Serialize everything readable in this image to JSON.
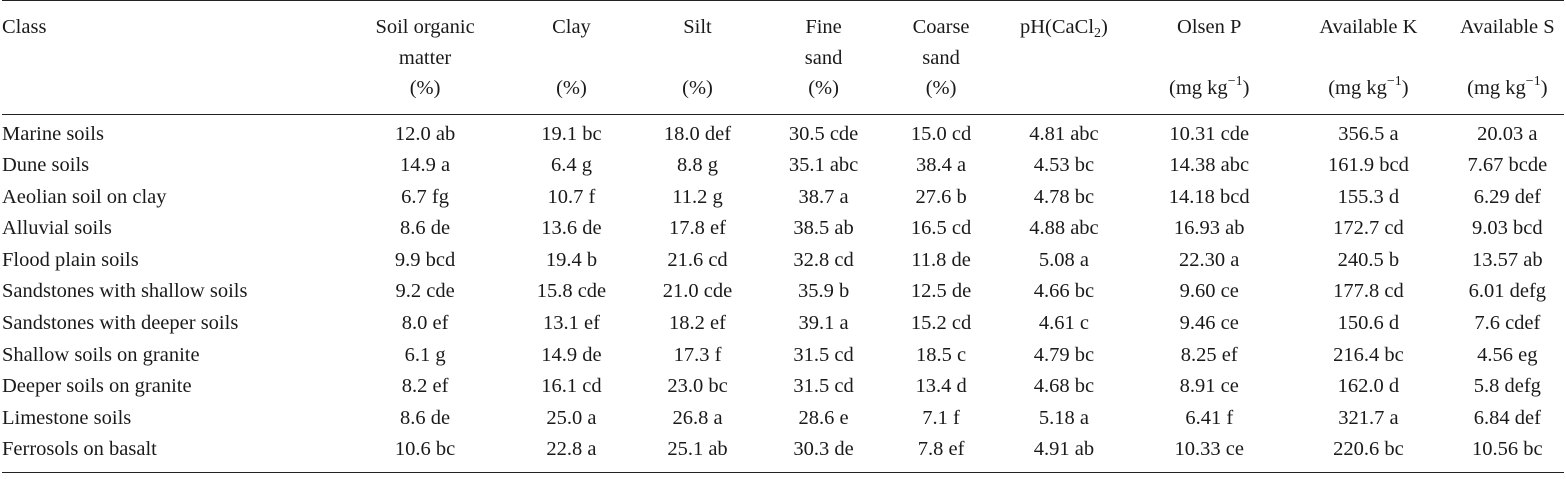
{
  "headers": [
    {
      "key": "class",
      "label": "Class",
      "unit": ""
    },
    {
      "key": "som",
      "label": "Soil organic matter",
      "unit": "(%)"
    },
    {
      "key": "clay",
      "label": "Clay",
      "unit": "(%)"
    },
    {
      "key": "silt",
      "label": "Silt",
      "unit": "(%)"
    },
    {
      "key": "fine_sand",
      "label": "Fine sand",
      "unit": "(%)"
    },
    {
      "key": "coarse_sand",
      "label": "Coarse sand",
      "unit": "(%)"
    },
    {
      "key": "ph",
      "label": "pH(CaCl",
      "label_sub": "2",
      "label_after": ")",
      "unit": ""
    },
    {
      "key": "olsen_p",
      "label": "Olsen P",
      "unit": "(mg kg",
      "unit_sup": "−1",
      "unit_after": ")"
    },
    {
      "key": "avail_k",
      "label": "Available K",
      "unit": "(mg kg",
      "unit_sup": "−1",
      "unit_after": ")"
    },
    {
      "key": "avail_s",
      "label": "Available S",
      "unit": "(mg kg",
      "unit_sup": "−1",
      "unit_after": ")"
    }
  ],
  "rows": [
    [
      "Marine soils",
      "12.0 ab",
      "19.1 bc",
      "18.0 def",
      "30.5 cde",
      "15.0 cd",
      "4.81 abc",
      "10.31 cde",
      "356.5 a",
      "20.03 a"
    ],
    [
      "Dune soils",
      "14.9 a",
      "6.4 g",
      "8.8 g",
      "35.1 abc",
      "38.4 a",
      "4.53 bc",
      "14.38 abc",
      "161.9 bcd",
      "7.67 bcde"
    ],
    [
      "Aeolian soil on clay",
      "6.7 fg",
      "10.7 f",
      "11.2 g",
      "38.7 a",
      "27.6 b",
      "4.78 bc",
      "14.18 bcd",
      "155.3 d",
      "6.29 def"
    ],
    [
      "Alluvial soils",
      "8.6 de",
      "13.6 de",
      "17.8 ef",
      "38.5 ab",
      "16.5 cd",
      "4.88 abc",
      "16.93 ab",
      "172.7 cd",
      "9.03 bcd"
    ],
    [
      "Flood plain soils",
      "9.9 bcd",
      "19.4 b",
      "21.6 cd",
      "32.8 cd",
      "11.8 de",
      "5.08 a",
      "22.30 a",
      "240.5 b",
      "13.57 ab"
    ],
    [
      "Sandstones with shallow soils",
      "9.2 cde",
      "15.8 cde",
      "21.0 cde",
      "35.9 b",
      "12.5 de",
      "4.66 bc",
      "9.60 ce",
      "177.8 cd",
      "6.01 defg"
    ],
    [
      "Sandstones with deeper soils",
      "8.0 ef",
      "13.1 ef",
      "18.2 ef",
      "39.1 a",
      "15.2 cd",
      "4.61 c",
      "9.46 ce",
      "150.6 d",
      "7.6 cdef"
    ],
    [
      "Shallow soils on granite",
      "6.1 g",
      "14.9 de",
      "17.3 f",
      "31.5 cd",
      "18.5 c",
      "4.79 bc",
      "8.25 ef",
      "216.4 bc",
      "4.56 eg"
    ],
    [
      "Deeper soils on granite",
      "8.2 ef",
      "16.1 cd",
      "23.0 bc",
      "31.5 cd",
      "13.4 d",
      "4.68 bc",
      "8.91 ce",
      "162.0 d",
      "5.8 defg"
    ],
    [
      "Limestone soils",
      "8.6 de",
      "25.0 a",
      "26.8 a",
      "28.6 e",
      "7.1 f",
      "5.18 a",
      "6.41 f",
      "321.7 a",
      "6.84 def"
    ],
    [
      "Ferrosols on basalt",
      "10.6 bc",
      "22.8 a",
      "25.1 ab",
      "30.3 de",
      "7.8 ef",
      "4.91 ab",
      "10.33 ce",
      "220.6 bc",
      "10.56 bc"
    ]
  ]
}
